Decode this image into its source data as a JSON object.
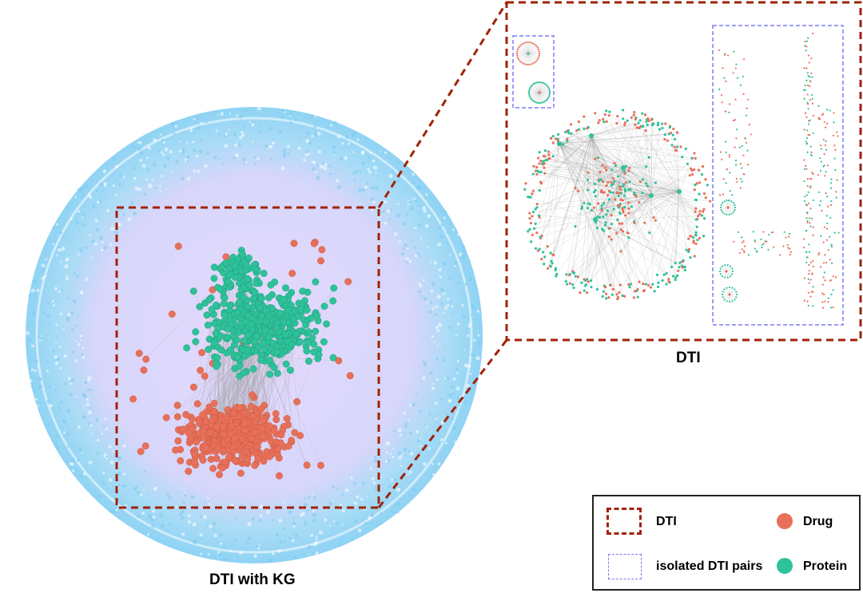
{
  "colors": {
    "drug": "#e8705a",
    "protein": "#2ec29a",
    "kg_nodes": "#8fd3f4",
    "kg_inner": "#e2d6fb",
    "dti_box": "#a12208",
    "isolated_box": "#7b7bf7",
    "edges": "#9a9a9a"
  },
  "captions": {
    "kg": "DTI with KG",
    "dti": "DTI"
  },
  "legend": {
    "dti_box_label": "DTI",
    "isolated_box_label": "isolated DTI pairs",
    "drug_label": "Drug",
    "protein_label": "Protein"
  }
}
